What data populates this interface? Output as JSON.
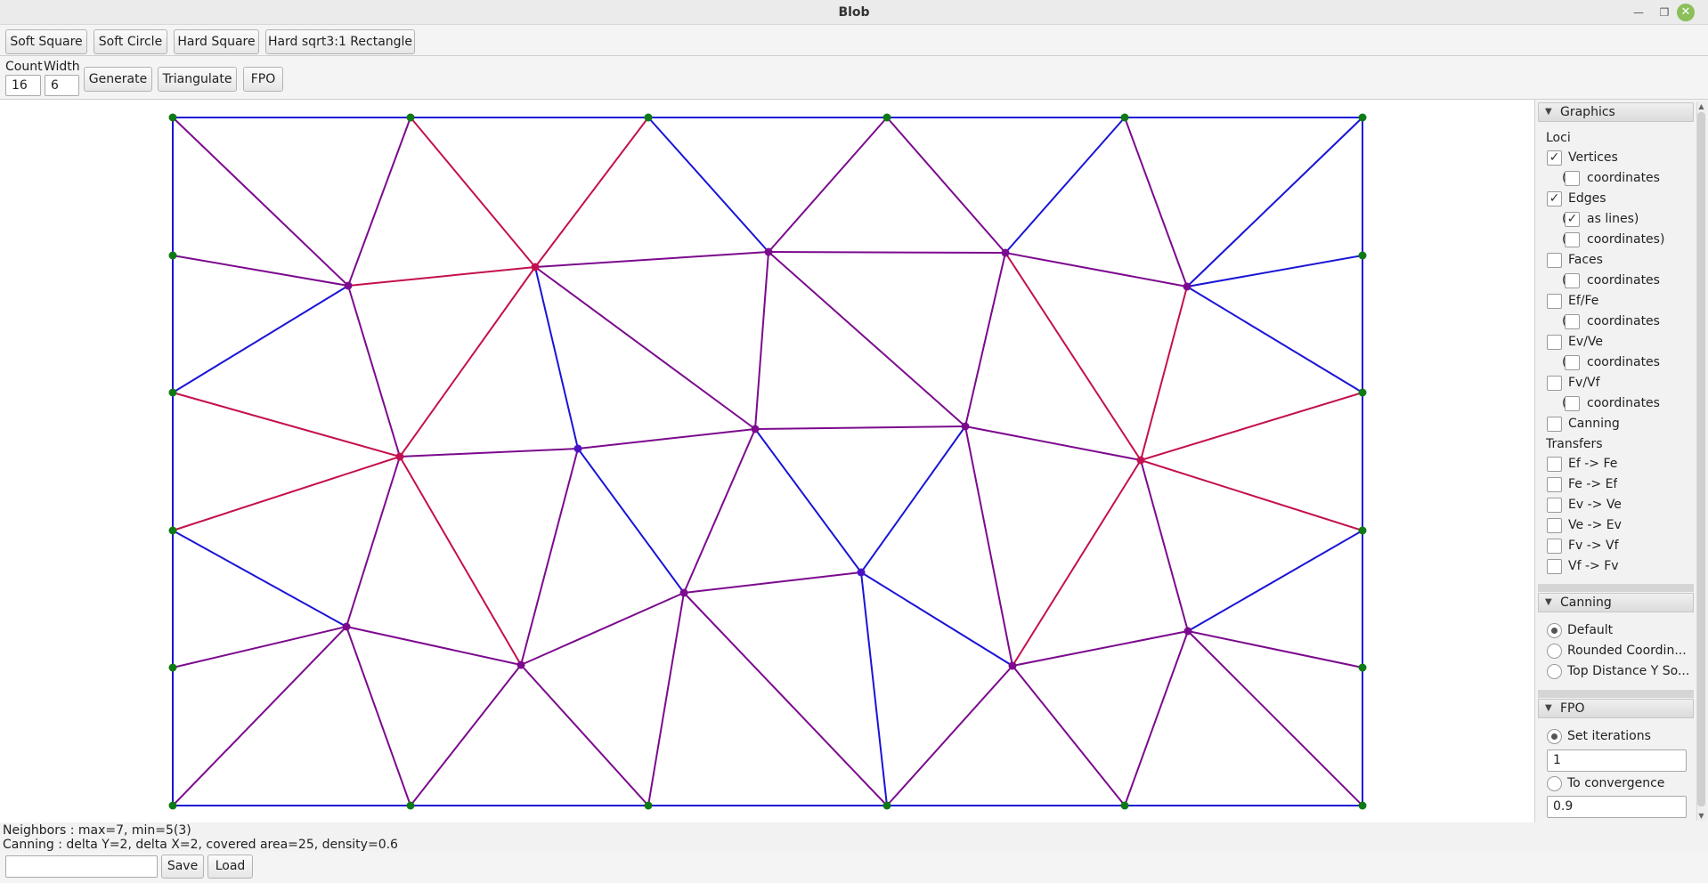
{
  "window": {
    "title": "Blob"
  },
  "toolbar1": {
    "buttons": [
      "Soft Square",
      "Soft Circle",
      "Hard Square",
      "Hard sqrt3:1 Rectangle"
    ]
  },
  "toolbar2": {
    "count_label": "Count",
    "width_label": "Width",
    "count_value": "16",
    "width_value": "6",
    "generate": "Generate",
    "triangulate": "Triangulate",
    "fpo": "FPO"
  },
  "mesh": {
    "colors": {
      "blue": "#1a14d6",
      "purple": "#7c0a8e",
      "red": "#c4104e",
      "green": "#0e7a16",
      "violet": "#4a12c4"
    },
    "vertex_color_names": [
      "green",
      "purple",
      "red",
      "violet"
    ],
    "edge_color_names": [
      "blue",
      "purple",
      "red"
    ]
  },
  "graphics": {
    "title": "Graphics",
    "loci_label": "Loci",
    "vertices": {
      "label": "Vertices",
      "checked": true,
      "coordinates": "coordinates",
      "coordinates_checked": false
    },
    "edges": {
      "label": "Edges",
      "checked": true,
      "as_lines": "as lines)",
      "as_lines_checked": true,
      "coordinates": "coordinates)",
      "coordinates_checked": false
    },
    "faces": {
      "label": "Faces",
      "checked": false,
      "coordinates": "coordinates"
    },
    "efFe": {
      "label": "Ef/Fe",
      "checked": false,
      "coordinates": "coordinates"
    },
    "evVe": {
      "label": "Ev/Ve",
      "checked": false,
      "coordinates": "coordinates"
    },
    "fvVf": {
      "label": "Fv/Vf",
      "checked": false,
      "coordinates": "coordinates"
    },
    "canning": {
      "label": "Canning",
      "checked": false
    },
    "transfers_label": "Transfers",
    "transfers": [
      "Ef -> Fe",
      "Fe -> Ef",
      "Ev -> Ve",
      "Ve -> Ev",
      "Fv -> Vf",
      "Vf -> Fv"
    ]
  },
  "canning_panel": {
    "title": "Canning",
    "options": [
      "Default",
      "Rounded Coordin...",
      "Top Distance Y So..."
    ],
    "selected": "Default"
  },
  "fpo_panel": {
    "title": "FPO",
    "set_iterations": "Set iterations",
    "iterations_value": "1",
    "to_convergence": "To convergence",
    "convergence_value": "0.9",
    "selected": "Set iterations"
  },
  "status": {
    "neighbors": "Neighbors : max=7, min=5(3)",
    "canning": "Canning : delta Y=2, delta X=2, covered area=25, density=0.6"
  },
  "bottom": {
    "input_value": "",
    "save": "Save",
    "load": "Load"
  }
}
